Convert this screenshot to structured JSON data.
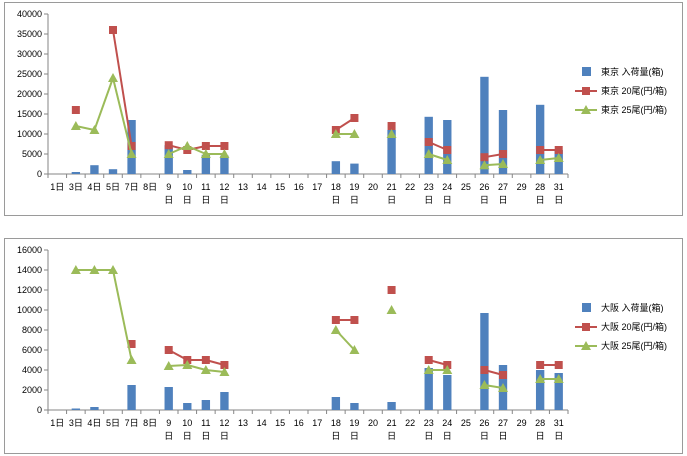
{
  "chart_data": [
    {
      "type": "bar+line",
      "x_labels": [
        "1日",
        "3日",
        "4日",
        "5日",
        "7日",
        "8日",
        "9日",
        "10日",
        "11日",
        "12日",
        "13",
        "14",
        "15",
        "16",
        "17",
        "18",
        "19",
        "20",
        "21",
        "22",
        "23",
        "24",
        "25",
        "26",
        "27",
        "29",
        "28",
        "31"
      ],
      "x_label_lines": [
        [
          "1日"
        ],
        [
          "3日"
        ],
        [
          "4日"
        ],
        [
          "5日"
        ],
        [
          "7日"
        ],
        [
          "8日"
        ],
        [
          "9",
          "日"
        ],
        [
          "10",
          "日"
        ],
        [
          "11",
          "日"
        ],
        [
          "12",
          "日"
        ],
        [
          "13"
        ],
        [
          "14"
        ],
        [
          "15"
        ],
        [
          "16"
        ],
        [
          "17"
        ],
        [
          "18",
          "日"
        ],
        [
          "19",
          "日"
        ],
        [
          "20"
        ],
        [
          "21",
          "日"
        ],
        [
          "22"
        ],
        [
          "23",
          "日"
        ],
        [
          "24",
          "日"
        ],
        [
          "25"
        ],
        [
          "26",
          "日"
        ],
        [
          "27",
          "日"
        ],
        [
          "29"
        ],
        [
          "28",
          "日"
        ],
        [
          "31",
          "日"
        ]
      ],
      "ylim": [
        0,
        40000
      ],
      "yticks": [
        "0",
        "5000",
        "10000",
        "15000",
        "20000",
        "25000",
        "30000",
        "35000",
        "40000"
      ],
      "series": [
        {
          "name": "東京 入荷量(箱)",
          "kind": "bar",
          "color": "#4f81bd",
          "values": [
            null,
            500,
            2200,
            1200,
            13500,
            null,
            7200,
            1000,
            4800,
            4600,
            null,
            null,
            null,
            null,
            null,
            3200,
            2600,
            null,
            11000,
            null,
            14300,
            13500,
            null,
            24300,
            16000,
            null,
            17300,
            6000
          ]
        },
        {
          "name": "東京 20尾(円/箱)",
          "kind": "line",
          "marker": "square",
          "color": "#c0504d",
          "values": [
            null,
            16000,
            null,
            36000,
            7000,
            null,
            7200,
            6000,
            7000,
            7000,
            null,
            null,
            null,
            null,
            null,
            11000,
            14000,
            null,
            12000,
            null,
            8000,
            6000,
            null,
            4200,
            5000,
            null,
            6000,
            6000
          ]
        },
        {
          "name": "東京 25尾(円/箱)",
          "kind": "line",
          "marker": "triangle",
          "color": "#9bbb59",
          "values": [
            null,
            12000,
            11000,
            24000,
            5000,
            null,
            5000,
            7000,
            5000,
            5000,
            null,
            null,
            null,
            null,
            null,
            10000,
            10000,
            null,
            10000,
            null,
            5000,
            3500,
            null,
            2200,
            2500,
            null,
            3500,
            4000
          ]
        }
      ]
    },
    {
      "type": "bar+line",
      "x_labels": [
        "1日",
        "3日",
        "4日",
        "5日",
        "7日",
        "8日",
        "9日",
        "10日",
        "11日",
        "12日",
        "13",
        "14",
        "15",
        "16",
        "17",
        "18",
        "19",
        "20",
        "21",
        "22",
        "23",
        "24",
        "25",
        "26",
        "27",
        "29",
        "28",
        "31"
      ],
      "x_label_lines": [
        [
          "1日"
        ],
        [
          "3日"
        ],
        [
          "4日"
        ],
        [
          "5日"
        ],
        [
          "7日"
        ],
        [
          "8日"
        ],
        [
          "9",
          "日"
        ],
        [
          "10",
          "日"
        ],
        [
          "11",
          "日"
        ],
        [
          "12",
          "日"
        ],
        [
          "13"
        ],
        [
          "14"
        ],
        [
          "15"
        ],
        [
          "16"
        ],
        [
          "17"
        ],
        [
          "18",
          "日"
        ],
        [
          "19",
          "日"
        ],
        [
          "20"
        ],
        [
          "21",
          "日"
        ],
        [
          "22"
        ],
        [
          "23",
          "日"
        ],
        [
          "24",
          "日"
        ],
        [
          "25"
        ],
        [
          "26",
          "日"
        ],
        [
          "27",
          "日"
        ],
        [
          "29"
        ],
        [
          "28",
          "日"
        ],
        [
          "31",
          "日"
        ]
      ],
      "ylim": [
        0,
        16000
      ],
      "yticks": [
        "0",
        "2000",
        "4000",
        "6000",
        "8000",
        "10000",
        "12000",
        "14000",
        "16000"
      ],
      "series": [
        {
          "name": "大阪 入荷量(箱)",
          "kind": "bar",
          "color": "#4f81bd",
          "values": [
            null,
            150,
            300,
            null,
            2500,
            null,
            2300,
            700,
            1000,
            1800,
            null,
            null,
            null,
            null,
            null,
            1300,
            700,
            null,
            800,
            null,
            4200,
            3500,
            null,
            9700,
            4500,
            null,
            4000,
            3700
          ]
        },
        {
          "name": "大阪 20尾(円/箱)",
          "kind": "line",
          "marker": "square",
          "color": "#c0504d",
          "values": [
            null,
            null,
            null,
            null,
            6600,
            null,
            6000,
            5000,
            5000,
            4500,
            null,
            null,
            null,
            null,
            null,
            9000,
            9000,
            null,
            12000,
            null,
            5000,
            4500,
            null,
            4000,
            3500,
            null,
            4500,
            4500
          ]
        },
        {
          "name": "大阪 25尾(円/箱)",
          "kind": "line",
          "marker": "triangle",
          "color": "#9bbb59",
          "values": [
            null,
            14000,
            14000,
            14000,
            5000,
            null,
            4400,
            4500,
            4000,
            3800,
            null,
            null,
            null,
            null,
            null,
            8000,
            6000,
            null,
            10000,
            null,
            4000,
            4000,
            null,
            2500,
            2200,
            null,
            3100,
            3100
          ]
        }
      ]
    }
  ]
}
